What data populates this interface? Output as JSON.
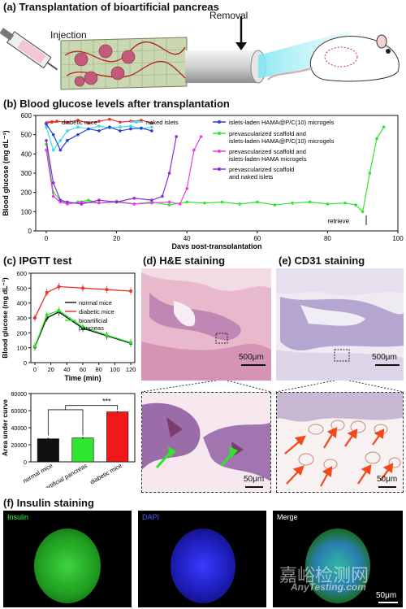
{
  "panel_a": {
    "title": "(a) Transplantation of bioartificial pancreas",
    "injection": "Injection",
    "removal": "Removal"
  },
  "panel_b": {
    "title": "(b) Blood glucose levels after transplantation",
    "ylabel": "Blood glucose (mg dL⁻¹)",
    "xlabel": "Days post-transplantation",
    "annotation": "retrieve",
    "legend": [
      {
        "name": "diabetic mice",
        "color": "#e8312b"
      },
      {
        "name": "naked islets",
        "color": "#3dd9e8"
      },
      {
        "name": "islets-laden HAMA@P/C(10) microgels",
        "color": "#2b3fd6"
      },
      {
        "name": "prevascularized scaffold and islets-laden HAMA@P/C(10) microgels",
        "color": "#2ee62e"
      },
      {
        "name": "prevascularized scaffold and islets-laden HAMA microgels",
        "color": "#e83fe0"
      },
      {
        "name": "prevascularized scaffold and naked islets",
        "color": "#8a2be2"
      }
    ]
  },
  "panel_c": {
    "title": "(c) IPGTT test",
    "ylabel": "Blood glucose (mg dL⁻¹)",
    "xlabel": "Time (min)",
    "legend": [
      {
        "name": "normal mice",
        "color": "#111111"
      },
      {
        "name": "diabetic mice",
        "color": "#e8312b"
      },
      {
        "name": "bioartificial pancreas",
        "color": "#2ee62e"
      }
    ],
    "bar_ylabel": "Area under curve",
    "significance": "***"
  },
  "panel_d": {
    "title": "(d) H&E staining",
    "scale_top": "500μm",
    "scale_bottom": "50μm"
  },
  "panel_e": {
    "title": "(e) CD31 staining",
    "scale_top": "500μm",
    "scale_bottom": "50μm"
  },
  "panel_f": {
    "title": "(f) Insulin staining",
    "channels": [
      "Insulin",
      "DAPI",
      "Merge"
    ],
    "scale": "50μm"
  },
  "watermark": {
    "cn": "嘉峪检测网",
    "en": "AnyTesting.com"
  },
  "chart_data": [
    {
      "type": "line",
      "title": "Blood glucose levels after transplantation",
      "xlabel": "Days post-transplantation",
      "ylabel": "Blood glucose (mg dL⁻¹)",
      "xlim": [
        -3,
        100
      ],
      "ylim": [
        0,
        600
      ],
      "xticks": [
        0,
        20,
        40,
        60,
        80,
        100
      ],
      "yticks": [
        0,
        100,
        200,
        300,
        400,
        500,
        600
      ],
      "series": [
        {
          "name": "diabetic mice",
          "x": [
            0,
            3,
            6,
            9,
            12,
            15,
            18,
            21,
            24,
            27,
            30
          ],
          "y": [
            560,
            570,
            565,
            575,
            560,
            570,
            580,
            565,
            570,
            575,
            560
          ]
        },
        {
          "name": "naked islets",
          "x": [
            0,
            2,
            4,
            6,
            9,
            12,
            15,
            18,
            21,
            24,
            27,
            30
          ],
          "y": [
            540,
            420,
            470,
            520,
            540,
            530,
            545,
            535,
            540,
            545,
            530,
            540
          ]
        },
        {
          "name": "islets-laden HAMA@P/C(10) microgels",
          "x": [
            0,
            2,
            4,
            6,
            9,
            12,
            15,
            18,
            21,
            24,
            27,
            30
          ],
          "y": [
            555,
            500,
            420,
            470,
            500,
            530,
            520,
            540,
            520,
            530,
            535,
            520
          ]
        },
        {
          "name": "prevascularized scaffold and islets-laden HAMA@P/C(10) microgels",
          "x": [
            0,
            2,
            4,
            6,
            9,
            12,
            15,
            20,
            25,
            30,
            35,
            40,
            45,
            50,
            55,
            60,
            65,
            70,
            75,
            80,
            85,
            88,
            90,
            92,
            94,
            96
          ],
          "y": [
            450,
            200,
            160,
            140,
            150,
            160,
            145,
            155,
            140,
            150,
            135,
            150,
            145,
            150,
            140,
            150,
            135,
            145,
            150,
            140,
            145,
            135,
            100,
            300,
            480,
            540
          ]
        },
        {
          "name": "prevascularized scaffold and islets-laden HAMA microgels",
          "x": [
            0,
            2,
            4,
            6,
            10,
            15,
            20,
            25,
            30,
            35,
            38,
            40,
            42,
            44
          ],
          "y": [
            420,
            180,
            150,
            140,
            150,
            145,
            150,
            140,
            145,
            150,
            140,
            220,
            420,
            490
          ]
        },
        {
          "name": "prevascularized scaffold and naked islets",
          "x": [
            0,
            2,
            4,
            6,
            10,
            15,
            20,
            25,
            30,
            33,
            35,
            37
          ],
          "y": [
            470,
            250,
            160,
            150,
            140,
            160,
            150,
            170,
            160,
            180,
            300,
            490
          ]
        }
      ]
    },
    {
      "type": "line",
      "title": "IPGTT test",
      "xlabel": "Time (min)",
      "ylabel": "Blood glucose (mg dL⁻¹)",
      "xlim": [
        -5,
        125
      ],
      "ylim": [
        0,
        600
      ],
      "xticks": [
        0,
        20,
        40,
        60,
        80,
        100,
        120
      ],
      "yticks": [
        0,
        100,
        200,
        300,
        400,
        500,
        600
      ],
      "x": [
        0,
        15,
        30,
        60,
        90,
        120
      ],
      "series": [
        {
          "name": "normal mice",
          "y": [
            105,
            300,
            340,
            230,
            180,
            130
          ]
        },
        {
          "name": "diabetic mice",
          "y": [
            300,
            470,
            510,
            500,
            490,
            480
          ]
        },
        {
          "name": "bioartificial pancreas",
          "y": [
            110,
            320,
            350,
            240,
            185,
            135
          ]
        }
      ]
    },
    {
      "type": "bar",
      "ylabel": "Area under curve",
      "categories": [
        "normal mice",
        "bioartificial pancreas",
        "diabetic mice"
      ],
      "values": [
        27000,
        28000,
        58500
      ],
      "colors": [
        "#111111",
        "#2ee62e",
        "#f01818"
      ],
      "ylim": [
        0,
        80000
      ],
      "yticks": [
        0,
        20000,
        40000,
        60000,
        80000
      ]
    }
  ]
}
